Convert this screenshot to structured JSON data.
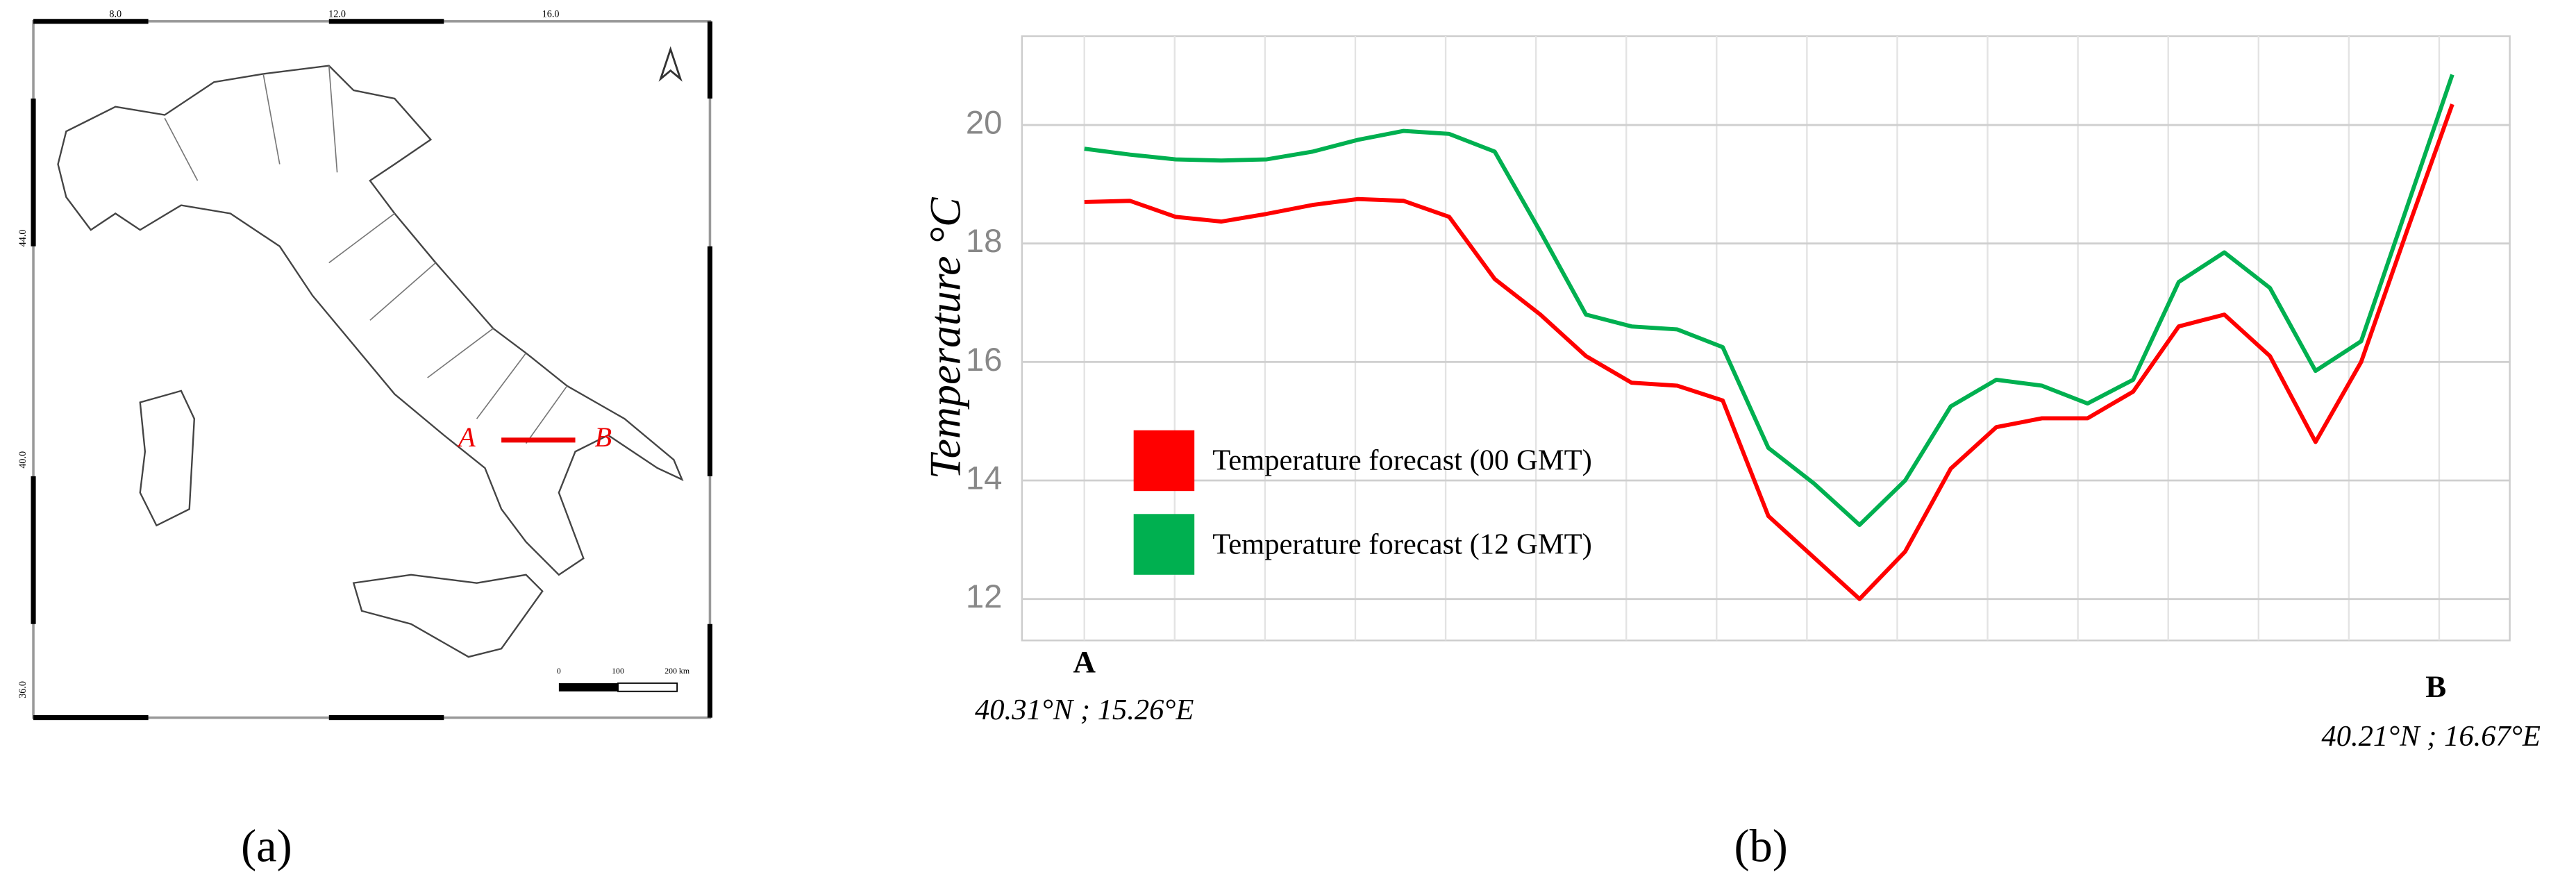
{
  "map": {
    "x_ticks": [
      "8.0",
      "12.0",
      "16.0"
    ],
    "y_ticks": [
      "44.0",
      "40.0",
      "36.0"
    ],
    "scale_labels": [
      "0",
      "100",
      "200 km"
    ],
    "point_labels": [
      "A",
      "B"
    ],
    "caption": "(a)"
  },
  "chart_data": {
    "type": "line",
    "y_label": "Temperature °C",
    "categories": [
      "A",
      null,
      null,
      null,
      null,
      null,
      null,
      null,
      null,
      null,
      null,
      null,
      null,
      null,
      null,
      null,
      null,
      null,
      null,
      null,
      null,
      null,
      null,
      null,
      null,
      null,
      null,
      null,
      null,
      null,
      "B"
    ],
    "series": [
      {
        "name": "Temperature forecast (00 GMT)",
        "color": "#ff0000",
        "values": [
          18.7,
          18.72,
          18.45,
          18.37,
          18.5,
          18.65,
          18.75,
          18.72,
          18.45,
          17.4,
          16.8,
          16.1,
          15.65,
          15.6,
          15.35,
          13.4,
          12.7,
          12.0,
          12.8,
          14.2,
          14.9,
          15.05,
          15.05,
          15.5,
          16.6,
          16.8,
          16.1,
          14.65,
          16.0,
          18.2,
          20.35
        ]
      },
      {
        "name": "Temperature forecast (12 GMT)",
        "color": "#00b050",
        "values": [
          19.6,
          19.5,
          19.42,
          19.4,
          19.42,
          19.55,
          19.75,
          19.9,
          19.85,
          19.55,
          18.2,
          16.8,
          16.6,
          16.55,
          16.25,
          14.55,
          13.95,
          13.25,
          14.0,
          15.25,
          15.7,
          15.6,
          15.3,
          15.7,
          17.35,
          17.85,
          17.25,
          15.85,
          16.35,
          18.6,
          20.85
        ]
      }
    ],
    "ylim": [
      11.3,
      21.5
    ],
    "yticks": [
      12,
      14,
      16,
      18,
      20
    ],
    "grid": true,
    "legend": "center-left",
    "annotations": [
      "40.31°N ; 15.26°E",
      "40.21°N ; 16.67°E"
    ],
    "caption": "(b)"
  }
}
